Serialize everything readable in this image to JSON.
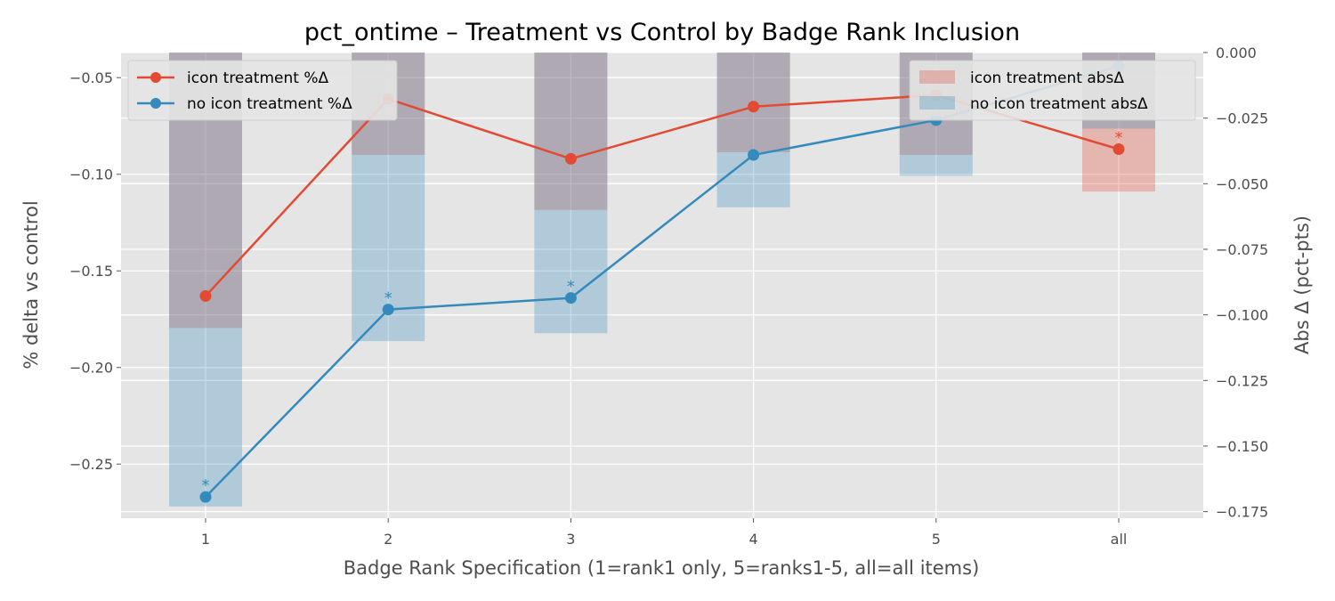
{
  "chart_data": {
    "type": "bar",
    "title": "pct_ontime – Treatment vs Control by Badge Rank Inclusion",
    "xlabel": "Badge Rank Specification (1=rank1 only, 5=ranks1-5, all=all items)",
    "ylabel_left": "% delta vs control",
    "ylabel_right": "Abs Δ (pct-pts)",
    "categories": [
      "1",
      "2",
      "3",
      "4",
      "5",
      "all"
    ],
    "ylim_left": [
      -0.278,
      -0.037
    ],
    "ylim_right": [
      -0.1775,
      0.0
    ],
    "yticks_left": [
      "−0.05",
      "−0.10",
      "−0.15",
      "−0.20",
      "−0.25"
    ],
    "yticks_left_values": [
      -0.05,
      -0.1,
      -0.15,
      -0.2,
      -0.25
    ],
    "yticks_right": [
      "0.000",
      "−0.025",
      "−0.050",
      "−0.075",
      "−0.100",
      "−0.125",
      "−0.150",
      "−0.175"
    ],
    "yticks_right_values": [
      0.0,
      -0.025,
      -0.05,
      -0.075,
      -0.1,
      -0.125,
      -0.15,
      -0.175
    ],
    "grid": true,
    "legend_left_placement": "upper-left",
    "legend_right_placement": "upper-right",
    "line_series": [
      {
        "name": "icon treatment %Δ",
        "color": "#E24A33",
        "values": [
          -0.163,
          -0.061,
          -0.092,
          -0.065,
          -0.059,
          -0.087
        ],
        "significant": [
          false,
          false,
          false,
          false,
          false,
          true
        ]
      },
      {
        "name": "no icon treatment %Δ",
        "color": "#348ABD",
        "values": [
          -0.267,
          -0.17,
          -0.164,
          -0.09,
          -0.072,
          -0.044
        ],
        "significant": [
          true,
          true,
          true,
          false,
          false,
          false
        ]
      }
    ],
    "bar_series": [
      {
        "name": "icon treatment absΔ",
        "color": "#E24A33",
        "values": [
          -0.105,
          -0.039,
          -0.06,
          -0.038,
          -0.039,
          -0.053
        ]
      },
      {
        "name": "no icon treatment absΔ",
        "color": "#348ABD",
        "values": [
          -0.173,
          -0.11,
          -0.107,
          -0.059,
          -0.047,
          -0.029
        ]
      }
    ],
    "significance_marker": "*"
  }
}
